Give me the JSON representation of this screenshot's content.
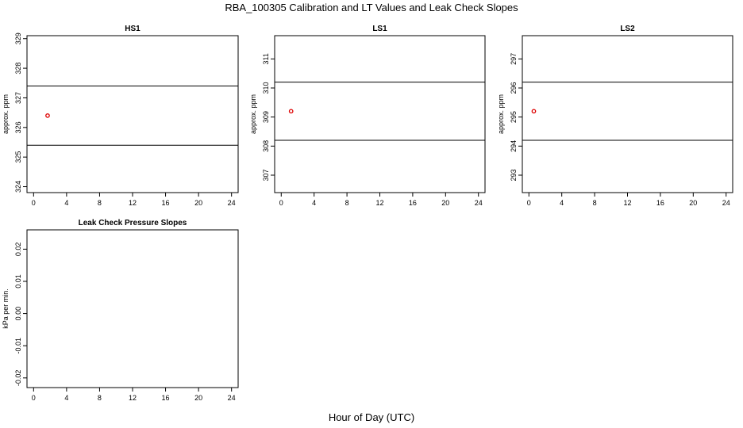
{
  "page": {
    "title": "RBA_100305  Calibration and LT Values and Leak Check Slopes",
    "xlabel": "Hour of Day (UTC)"
  },
  "chart_data": [
    {
      "type": "scatter",
      "title": "HS1",
      "ylabel": "approx. ppm",
      "xlim": [
        -0.8,
        24.8
      ],
      "ylim": [
        323.8,
        329.1
      ],
      "xticks": [
        0,
        4,
        8,
        12,
        16,
        20,
        24
      ],
      "yticks": [
        324,
        325,
        326,
        327,
        328,
        329
      ],
      "hlines": [
        325.4,
        327.4
      ],
      "points": [
        {
          "x": 1.7,
          "y": 326.4
        }
      ],
      "point_color": "#dd0000"
    },
    {
      "type": "scatter",
      "title": "LS1",
      "ylabel": "approx. ppm",
      "xlim": [
        -0.8,
        24.8
      ],
      "ylim": [
        306.4,
        311.8
      ],
      "xticks": [
        0,
        4,
        8,
        12,
        16,
        20,
        24
      ],
      "yticks": [
        307,
        308,
        309,
        310,
        311
      ],
      "hlines": [
        308.2,
        310.2
      ],
      "points": [
        {
          "x": 1.2,
          "y": 309.2
        }
      ],
      "point_color": "#dd0000"
    },
    {
      "type": "scatter",
      "title": "LS2",
      "ylabel": "approx. ppm",
      "xlim": [
        -0.8,
        24.8
      ],
      "ylim": [
        292.4,
        297.8
      ],
      "xticks": [
        0,
        4,
        8,
        12,
        16,
        20,
        24
      ],
      "yticks": [
        293,
        294,
        295,
        296,
        297
      ],
      "hlines": [
        294.2,
        296.2
      ],
      "points": [
        {
          "x": 0.6,
          "y": 295.2
        }
      ],
      "point_color": "#dd0000"
    },
    {
      "type": "scatter",
      "title": "Leak Check Pressure Slopes",
      "ylabel": "kPa per min.",
      "xlim": [
        -0.8,
        24.8
      ],
      "ylim": [
        -0.023,
        0.026
      ],
      "xticks": [
        0,
        4,
        8,
        12,
        16,
        20,
        24
      ],
      "yticks": [
        -0.02,
        -0.01,
        0.0,
        0.01,
        0.02
      ],
      "ytick_labels": [
        "-0.02",
        "-0.01",
        "0.00",
        "0.01",
        "0.02"
      ],
      "hlines": [],
      "points": []
    }
  ]
}
